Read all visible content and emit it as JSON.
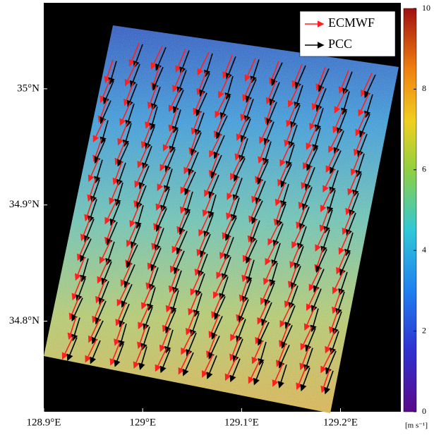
{
  "map": {
    "xlim": [
      128.9,
      129.261
    ],
    "ylim": [
      34.722,
      35.074
    ],
    "xticks": [
      {
        "value": 128.9,
        "label": "128.9°E"
      },
      {
        "value": 129.0,
        "label": "129°E"
      },
      {
        "value": 129.1,
        "label": "129.1°E"
      },
      {
        "value": 129.2,
        "label": "129.2°E"
      }
    ],
    "yticks": [
      {
        "value": 34.8,
        "label": "34.8°N"
      },
      {
        "value": 34.9,
        "label": "34.9°N"
      },
      {
        "value": 35.0,
        "label": "35°N"
      }
    ],
    "legend": [
      {
        "name": "ECMWF",
        "color": "#ff2020"
      },
      {
        "name": "PCC",
        "color": "#000000"
      }
    ],
    "colorbar": {
      "lim": [
        0,
        10
      ],
      "ticks": [
        0,
        2,
        4,
        6,
        8,
        10
      ],
      "unit": "[m s⁻¹]"
    }
  }
}
